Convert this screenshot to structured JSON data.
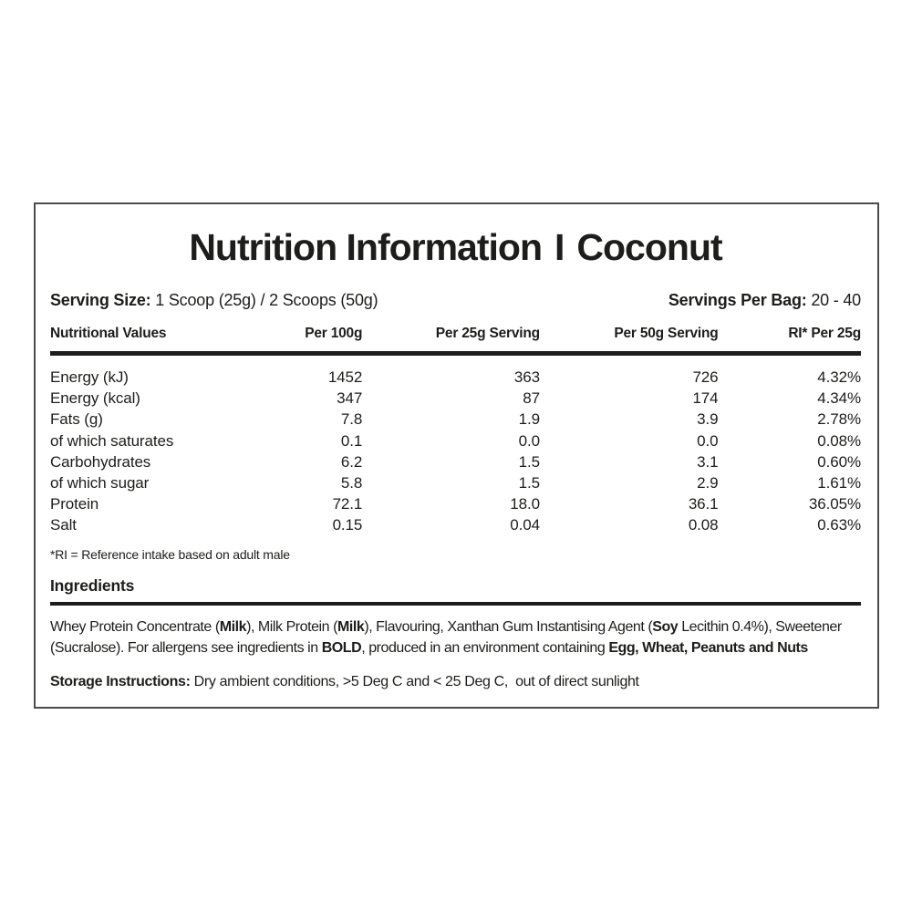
{
  "colors": {
    "text": "#1d1d1b",
    "border": "#4c4c4b",
    "rule": "#1d1d1b",
    "background": "#ffffff"
  },
  "label": {
    "title": {
      "main": "Nutrition Information",
      "separator": "I",
      "flavor": "Coconut"
    },
    "serving": {
      "size_label": "Serving Size:",
      "size_value": " 1 Scoop (25g) / 2 Scoops (50g)",
      "per_bag_label": "Servings Per Bag:",
      "per_bag_value": " 20 - 40"
    },
    "table": {
      "headers": [
        "Nutritional Values",
        "Per 100g",
        "Per 25g Serving",
        "Per 50g Serving",
        "RI* Per 25g"
      ],
      "rows": [
        [
          "Energy (kJ)",
          "1452",
          "363",
          "726",
          "4.32%"
        ],
        [
          "Energy (kcal)",
          "347",
          "87",
          "174",
          "4.34%"
        ],
        [
          "Fats (g)",
          "7.8",
          "1.9",
          "3.9",
          "2.78%"
        ],
        [
          "of which saturates",
          "0.1",
          "0.0",
          "0.0",
          "0.08%"
        ],
        [
          "Carbohydrates",
          "6.2",
          "1.5",
          "3.1",
          "0.60%"
        ],
        [
          "of which sugar",
          "5.8",
          "1.5",
          "2.9",
          "1.61%"
        ],
        [
          "Protein",
          "72.1",
          "18.0",
          "36.1",
          "36.05%"
        ],
        [
          "Salt",
          "0.15",
          "0.04",
          "0.08",
          "0.63%"
        ]
      ]
    },
    "footnote": "*RI = Reference intake based on adult male",
    "ingredients": {
      "heading": "Ingredients",
      "segments": [
        {
          "text": "Whey Protein Concentrate (",
          "bold": false
        },
        {
          "text": "Milk",
          "bold": true
        },
        {
          "text": "), Milk Protein (",
          "bold": false
        },
        {
          "text": "Milk",
          "bold": true
        },
        {
          "text": "), Flavouring, Xanthan Gum Instantising Agent (",
          "bold": false
        },
        {
          "text": "Soy",
          "bold": true
        },
        {
          "text": " Lecithin 0.4%), Sweetener (Sucralose). For allergens see ingredients in ",
          "bold": false
        },
        {
          "text": "BOLD",
          "bold": true
        },
        {
          "text": ", produced in an environment containing ",
          "bold": false
        },
        {
          "text": "Egg, Wheat, Peanuts and Nuts",
          "bold": true
        }
      ]
    },
    "storage": {
      "label": "Storage Instructions:",
      "text": " Dry ambient conditions, >5 Deg C and < 25 Deg C,  out of direct sunlight"
    }
  }
}
